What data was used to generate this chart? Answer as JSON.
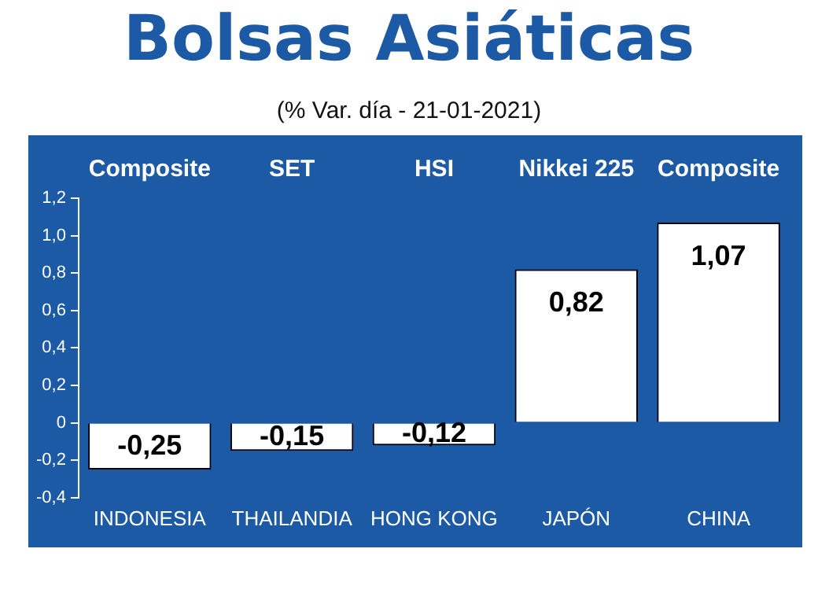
{
  "chart_data": {
    "type": "bar",
    "title": "Bolsas Asiáticas",
    "subtitle": "(% Var. día - 21-01-2021)",
    "categories": [
      "INDONESIA",
      "THAILANDIA",
      "HONG KONG",
      "JAPÓN",
      "CHINA"
    ],
    "values": [
      -0.25,
      -0.15,
      -0.12,
      0.82,
      1.07
    ],
    "value_labels": [
      "-0,25",
      "-0,15",
      "-0,12",
      "0,82",
      "1,07"
    ],
    "color": "#ffffff",
    "ylim": [
      -0.4,
      1.2
    ],
    "yticks": [
      {
        "value": -0.4,
        "label": "-0,4"
      },
      {
        "value": -0.2,
        "label": "-0,2"
      },
      0,
      {
        "value": 0.2,
        "label": "0,2"
      },
      {
        "value": 0.4,
        "label": "0,4"
      },
      {
        "value": 0.6,
        "label": "0,6"
      },
      {
        "value": 0.8,
        "label": "0,8"
      },
      {
        "value": 1.0,
        "label": "1,0"
      },
      {
        "value": 1.2,
        "label": "1,2"
      }
    ],
    "annotations": [
      "Composite",
      "SET",
      "HSI",
      "Nikkei 225",
      "Composite"
    ],
    "grid": false,
    "legend": false
  }
}
